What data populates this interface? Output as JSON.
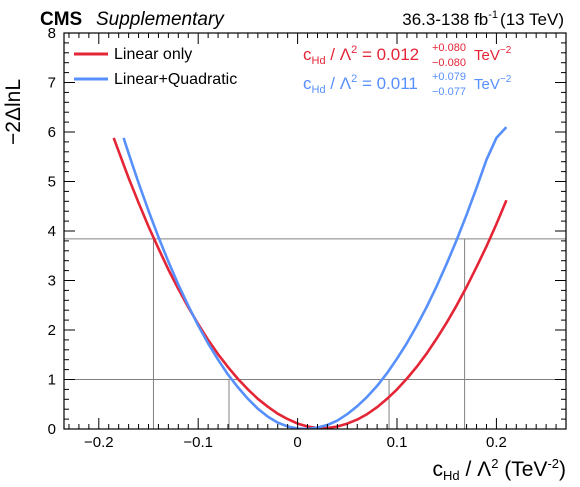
{
  "header": {
    "experiment": "CMS",
    "label": "Supplementary",
    "lumi_value": "36.3-138 fb",
    "lumi_exp": "-1",
    "energy": "(13 TeV)"
  },
  "axes": {
    "ylabel": "−2ΔlnL",
    "xlabel_main": "c",
    "xlabel_sub": "Hd",
    "xlabel_tail": " / Λ",
    "xlabel_sup": "2",
    "xlabel_unit": " (TeV",
    "xlabel_unit_sup": "-2",
    "xlabel_close": ")"
  },
  "colors": {
    "linear": "#e42536",
    "quadratic": "#5790fc",
    "reference_lines": "#808080"
  },
  "annotations": [
    {
      "series": "Linear only",
      "c": "c",
      "sub": "Hd",
      "mid": " / Λ",
      "sup": "2",
      "value": " = 0.012",
      "up": "+0.080",
      "down": "−0.080",
      "unit": " TeV",
      "unit_sup": "−2"
    },
    {
      "series": "Linear+Quadratic",
      "c": "c",
      "sub": "Hd",
      "mid": " / Λ",
      "sup": "2",
      "value": " = 0.011",
      "up": "+0.079",
      "down": "−0.077",
      "unit": " TeV",
      "unit_sup": "−2"
    }
  ],
  "chart_data": {
    "type": "line",
    "xlim": [
      -0.235,
      0.27
    ],
    "ylim": [
      0,
      8
    ],
    "x_ticks": [
      -0.2,
      -0.1,
      0,
      0.1,
      0.2
    ],
    "x_tick_labels": [
      "−0.2",
      "−0.1",
      "0",
      "0.1",
      "0.2"
    ],
    "y_ticks": [
      0,
      1,
      2,
      3,
      4,
      5,
      6,
      7,
      8
    ],
    "y_tick_labels": [
      "0",
      "1",
      "2",
      "3",
      "4",
      "5",
      "6",
      "7",
      "8"
    ],
    "reference_levels": [
      1,
      3.84
    ],
    "interval_markers": [
      -0.145,
      -0.069,
      0.092,
      0.168
    ],
    "legend_position": "top-left",
    "series": [
      {
        "name": "Linear only",
        "color": "#e42536",
        "x": [
          -0.185,
          -0.17,
          -0.16,
          -0.15,
          -0.14,
          -0.13,
          -0.12,
          -0.11,
          -0.1,
          -0.09,
          -0.08,
          -0.07,
          -0.06,
          -0.05,
          -0.04,
          -0.03,
          -0.02,
          -0.01,
          0,
          0.01,
          0.02,
          0.03,
          0.04,
          0.05,
          0.06,
          0.07,
          0.08,
          0.09,
          0.1,
          0.11,
          0.12,
          0.13,
          0.14,
          0.15,
          0.16,
          0.17,
          0.18,
          0.19,
          0.2,
          0.21
        ],
        "y": [
          5.88,
          5.07,
          4.57,
          4.09,
          3.65,
          3.22,
          2.83,
          2.46,
          2.12,
          1.8,
          1.51,
          1.25,
          1.01,
          0.8,
          0.61,
          0.45,
          0.31,
          0.2,
          0.11,
          0.05,
          0.02,
          0.02,
          0.05,
          0.11,
          0.19,
          0.3,
          0.44,
          0.61,
          0.8,
          1.02,
          1.26,
          1.53,
          1.83,
          2.15,
          2.5,
          2.87,
          3.27,
          3.69,
          4.14,
          4.62
        ]
      },
      {
        "name": "Linear+Quadratic",
        "color": "#5790fc",
        "x": [
          -0.175,
          -0.17,
          -0.16,
          -0.15,
          -0.14,
          -0.13,
          -0.12,
          -0.11,
          -0.1,
          -0.09,
          -0.08,
          -0.07,
          -0.06,
          -0.05,
          -0.04,
          -0.03,
          -0.02,
          -0.01,
          0,
          0.01,
          0.02,
          0.03,
          0.04,
          0.05,
          0.06,
          0.07,
          0.08,
          0.09,
          0.1,
          0.11,
          0.12,
          0.13,
          0.14,
          0.15,
          0.16,
          0.17,
          0.18,
          0.19,
          0.2,
          0.21
        ],
        "y": [
          5.88,
          5.57,
          4.97,
          4.41,
          3.88,
          3.38,
          2.92,
          2.49,
          2.09,
          1.73,
          1.4,
          1.1,
          0.84,
          0.61,
          0.41,
          0.25,
          0.13,
          0.05,
          0.01,
          0.0,
          0.03,
          0.08,
          0.17,
          0.3,
          0.46,
          0.65,
          0.87,
          1.13,
          1.42,
          1.74,
          2.09,
          2.47,
          2.89,
          3.34,
          3.82,
          4.33,
          4.87,
          5.44,
          5.88,
          6.1
        ]
      }
    ]
  }
}
